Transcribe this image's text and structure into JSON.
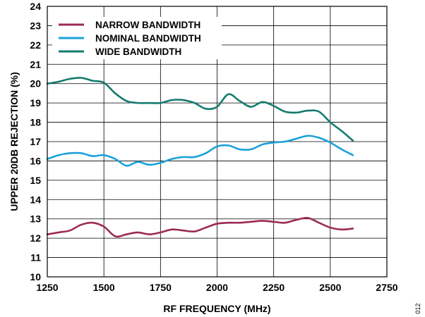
{
  "chart_data": {
    "type": "line",
    "xlabel": "RF FREQUENCY (MHz)",
    "ylabel": "UPPER 20DB REJECTION (%)",
    "xlim": [
      1250,
      2750
    ],
    "ylim": [
      10,
      24
    ],
    "xticks": [
      1250,
      1500,
      1750,
      2000,
      2250,
      2500,
      2750
    ],
    "yticks": [
      10,
      11,
      12,
      13,
      14,
      15,
      16,
      17,
      18,
      19,
      20,
      21,
      22,
      23,
      24
    ],
    "grid": true,
    "legend_position": "top-left",
    "series": [
      {
        "name": "NARROW BANDWIDTH",
        "color": "#9b2a56",
        "x": [
          1250,
          1300,
          1350,
          1400,
          1450,
          1500,
          1550,
          1600,
          1650,
          1700,
          1750,
          1800,
          1850,
          1900,
          1950,
          2000,
          2050,
          2100,
          2150,
          2200,
          2250,
          2300,
          2350,
          2400,
          2450,
          2500,
          2550,
          2600
        ],
        "y": [
          12.2,
          12.3,
          12.4,
          12.7,
          12.8,
          12.6,
          12.1,
          12.2,
          12.3,
          12.2,
          12.3,
          12.45,
          12.4,
          12.35,
          12.55,
          12.75,
          12.8,
          12.8,
          12.85,
          12.9,
          12.85,
          12.8,
          12.95,
          13.05,
          12.8,
          12.55,
          12.45,
          12.5
        ]
      },
      {
        "name": "NOMINAL BANDWIDTH",
        "color": "#1ba1db",
        "x": [
          1250,
          1300,
          1350,
          1400,
          1450,
          1500,
          1550,
          1600,
          1650,
          1700,
          1750,
          1800,
          1850,
          1900,
          1950,
          2000,
          2050,
          2100,
          2150,
          2200,
          2250,
          2300,
          2350,
          2400,
          2450,
          2500,
          2550,
          2600
        ],
        "y": [
          16.1,
          16.3,
          16.4,
          16.4,
          16.25,
          16.3,
          16.1,
          15.75,
          15.95,
          15.8,
          15.9,
          16.1,
          16.2,
          16.2,
          16.4,
          16.75,
          16.8,
          16.6,
          16.6,
          16.85,
          16.95,
          17.0,
          17.15,
          17.3,
          17.2,
          16.95,
          16.6,
          16.3
        ]
      },
      {
        "name": "WIDE BANDWIDTH",
        "color": "#147b6e",
        "x": [
          1250,
          1300,
          1350,
          1400,
          1450,
          1500,
          1550,
          1600,
          1650,
          1700,
          1750,
          1800,
          1850,
          1900,
          1950,
          2000,
          2050,
          2100,
          2150,
          2200,
          2250,
          2300,
          2350,
          2400,
          2450,
          2500,
          2550,
          2600
        ],
        "y": [
          20.0,
          20.1,
          20.25,
          20.3,
          20.15,
          20.05,
          19.5,
          19.1,
          19.0,
          19.0,
          19.0,
          19.15,
          19.15,
          19.0,
          18.7,
          18.8,
          19.45,
          19.1,
          18.8,
          19.05,
          18.85,
          18.55,
          18.5,
          18.6,
          18.55,
          18.0,
          17.55,
          17.05
        ]
      }
    ]
  },
  "side_label": "012"
}
